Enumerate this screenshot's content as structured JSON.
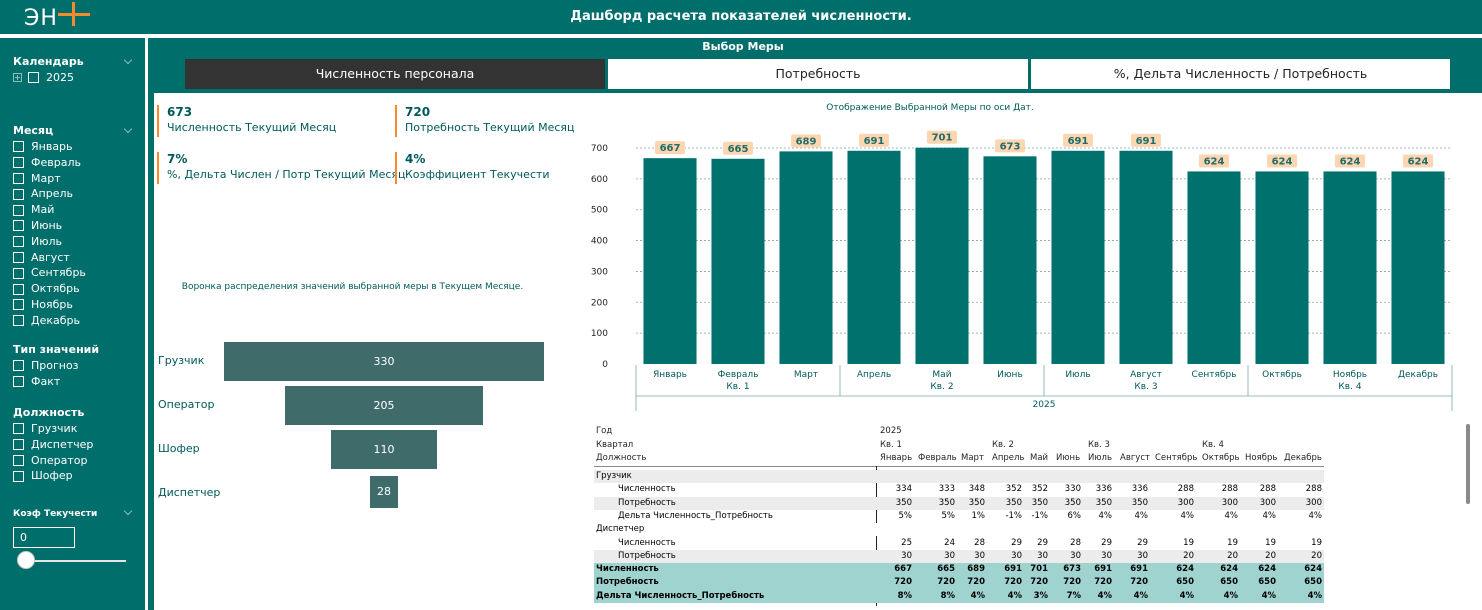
{
  "header": {
    "logo_text": "ЭН",
    "title": "Дашборд расчета показателей численности."
  },
  "sidebar": {
    "calendar": {
      "title": "Календарь",
      "year": "2025"
    },
    "months": {
      "title": "Месяц",
      "items": [
        "Январь",
        "Февраль",
        "Март",
        "Апрель",
        "Май",
        "Июнь",
        "Июль",
        "Август",
        "Сентябрь",
        "Октябрь",
        "Ноябрь",
        "Декабрь"
      ]
    },
    "value_type": {
      "title": "Тип значений",
      "items": [
        "Прогноз",
        "Факт"
      ]
    },
    "position": {
      "title": "Должность",
      "items": [
        "Грузчик",
        "Диспетчер",
        "Оператор",
        "Шофер"
      ]
    },
    "koef": {
      "title": "Коэф Текучести",
      "value": "0",
      "slider_level": 0
    }
  },
  "measure": {
    "title": "Выбор Меры",
    "buttons": [
      "Численность персонала",
      "Потребность",
      "%, Дельта Численность / Потребность"
    ],
    "selected": 0
  },
  "kpis": [
    {
      "value": "673",
      "label": "Численность Текущий Месяц"
    },
    {
      "value": "720",
      "label": "Потребность Текущий Месяц"
    },
    {
      "value": "7%",
      "label": "%, Дельта Числен / Потр Текущий Месяц"
    },
    {
      "value": "4%",
      "label": "Коэффициент Текучести"
    }
  ],
  "funnel": {
    "title": "Воронка распределения значений выбранной меры в Текущем Месяце.",
    "items": [
      {
        "label": "Грузчик",
        "value": 330
      },
      {
        "label": "Оператор",
        "value": 205
      },
      {
        "label": "Шофер",
        "value": 110
      },
      {
        "label": "Диспетчер",
        "value": 28
      }
    ],
    "color": "#3f6c6b"
  },
  "chart_data": {
    "type": "bar",
    "title": "Отображение Выбранной Меры по оси Дат.",
    "categories": [
      "Январь",
      "Февраль",
      "Март",
      "Апрель",
      "Май",
      "Июнь",
      "Июль",
      "Август",
      "Сентябрь",
      "Октябрь",
      "Ноябрь",
      "Декабрь"
    ],
    "values": [
      667,
      665,
      689,
      691,
      701,
      673,
      691,
      691,
      624,
      624,
      624,
      624
    ],
    "quarters": [
      "Кв. 1",
      "Кв. 2",
      "Кв. 3",
      "Кв. 4"
    ],
    "year": "2025",
    "yticks": [
      0,
      100,
      200,
      300,
      400,
      500,
      600,
      700
    ],
    "ylim": [
      0,
      720
    ],
    "grid": true,
    "bar_color": "#00716d",
    "label_bg": "#fbd6b1"
  },
  "table": {
    "header_labels": {
      "year": "Год",
      "quarter": "Квартал",
      "position": "Должность"
    },
    "year": "2025",
    "quarters": [
      "Кв. 1",
      "Кв. 2",
      "Кв. 3",
      "Кв. 4"
    ],
    "months": [
      "Январь",
      "Февраль",
      "Март",
      "Апрель",
      "Май",
      "Июнь",
      "Июль",
      "Август",
      "Сентябрь",
      "Октябрь",
      "Ноябрь",
      "Декабрь"
    ],
    "rows": [
      {
        "label": "Грузчик",
        "kind": "group",
        "values": []
      },
      {
        "label": "Численность",
        "kind": "sub",
        "values": [
          "334",
          "333",
          "348",
          "352",
          "352",
          "330",
          "336",
          "336",
          "288",
          "288",
          "288",
          "288"
        ]
      },
      {
        "label": "Потребность",
        "kind": "sub",
        "values": [
          "350",
          "350",
          "350",
          "350",
          "350",
          "350",
          "350",
          "350",
          "300",
          "300",
          "300",
          "300"
        ]
      },
      {
        "label": "Дельта Численность_Потребность",
        "kind": "sub",
        "values": [
          "5%",
          "5%",
          "1%",
          "-1%",
          "-1%",
          "6%",
          "4%",
          "4%",
          "4%",
          "4%",
          "4%",
          "4%"
        ]
      },
      {
        "label": "Диспетчер",
        "kind": "group",
        "values": []
      },
      {
        "label": "Численность",
        "kind": "sub",
        "values": [
          "25",
          "24",
          "28",
          "29",
          "29",
          "28",
          "29",
          "29",
          "19",
          "19",
          "19",
          "19"
        ]
      },
      {
        "label": "Потребность",
        "kind": "sub",
        "values": [
          "30",
          "30",
          "30",
          "30",
          "30",
          "30",
          "30",
          "30",
          "20",
          "20",
          "20",
          "20"
        ]
      },
      {
        "label": "Численность",
        "kind": "total",
        "values": [
          "667",
          "665",
          "689",
          "691",
          "701",
          "673",
          "691",
          "691",
          "624",
          "624",
          "624",
          "624"
        ]
      },
      {
        "label": "Потребность",
        "kind": "total",
        "values": [
          "720",
          "720",
          "720",
          "720",
          "720",
          "720",
          "720",
          "720",
          "650",
          "650",
          "650",
          "650"
        ]
      },
      {
        "label": "Дельта Численность_Потребность",
        "kind": "total",
        "values": [
          "8%",
          "8%",
          "4%",
          "4%",
          "3%",
          "7%",
          "4%",
          "4%",
          "4%",
          "4%",
          "4%",
          "4%"
        ]
      }
    ]
  }
}
